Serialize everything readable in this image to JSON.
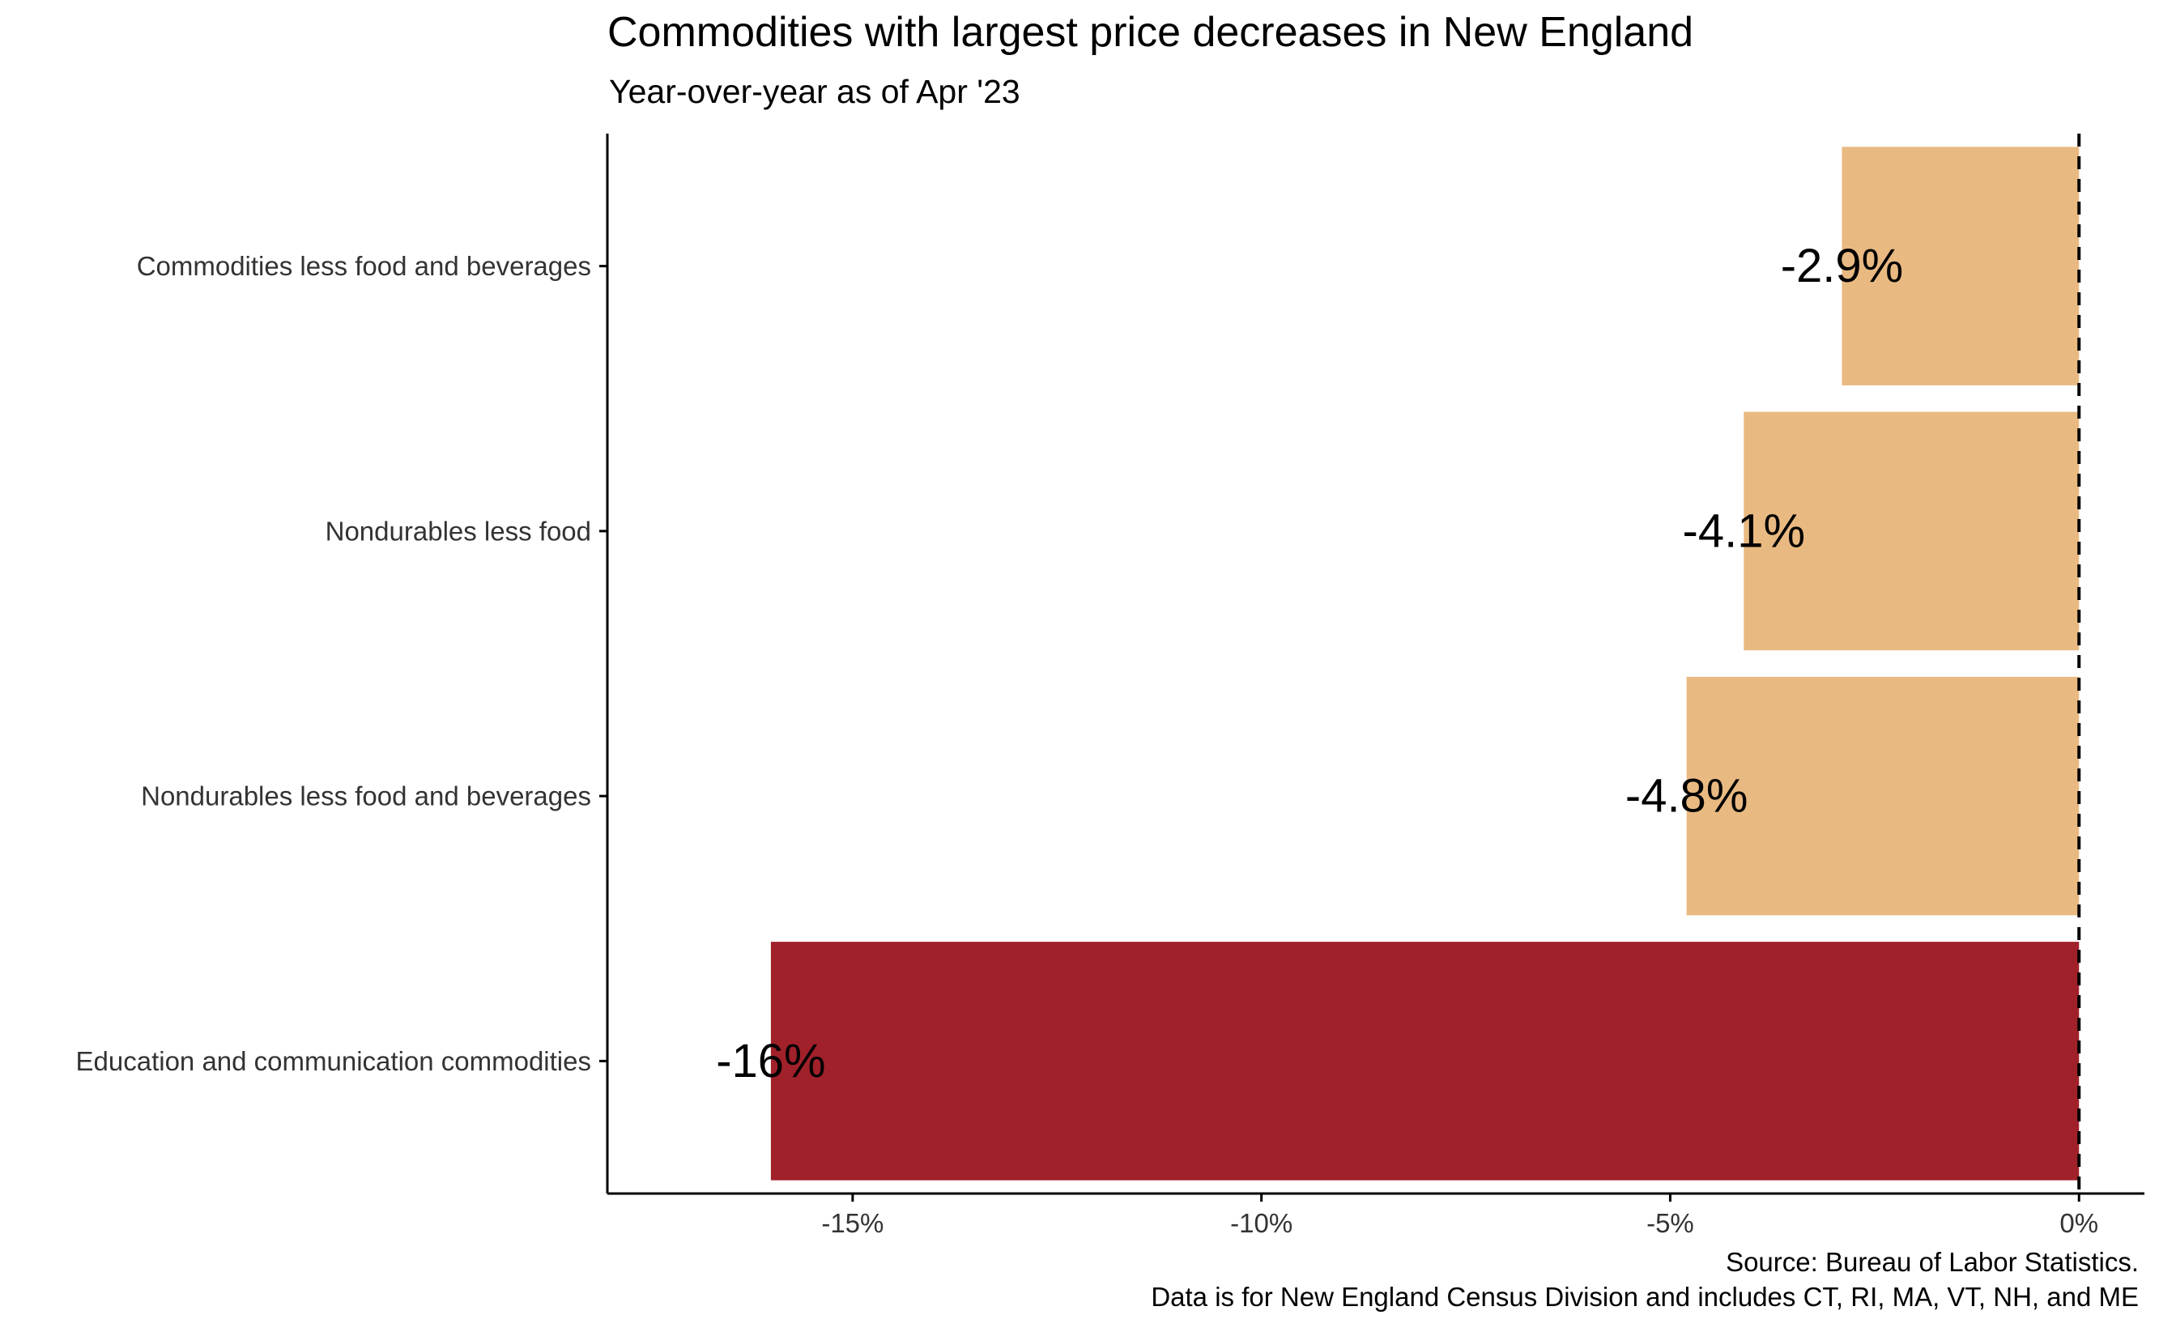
{
  "chart_data": {
    "type": "bar",
    "orientation": "horizontal",
    "title": "Commodities with largest price decreases in New England",
    "subtitle": "Year-over-year as of Apr '23",
    "xlabel": "",
    "ylabel": "",
    "categories": [
      "Commodities less food and beverages",
      "Nondurables less food",
      "Nondurables less food and beverages",
      "Education and communication commodities"
    ],
    "values": [
      -2.9,
      -4.1,
      -4.8,
      -16.0
    ],
    "data_labels": [
      "-2.9%",
      "-4.1%",
      "-4.8%",
      "-16%"
    ],
    "bar_colors": [
      "#E8B981",
      "#E8B981",
      "#E8B981",
      "#A0212A"
    ],
    "xlim": [
      -18,
      0.8
    ],
    "x_ticks": [
      -15,
      -10,
      -5,
      0
    ],
    "x_tick_labels": [
      "-15%",
      "-10%",
      "-5%",
      "0%"
    ],
    "reference_line": {
      "x": 0,
      "style": "dashed"
    },
    "grid": false,
    "legend": "none",
    "caption_lines": [
      "Source: Bureau of Labor Statistics.",
      "Data is for New England Census Division and includes CT, RI, MA, VT, NH, and ME"
    ]
  }
}
